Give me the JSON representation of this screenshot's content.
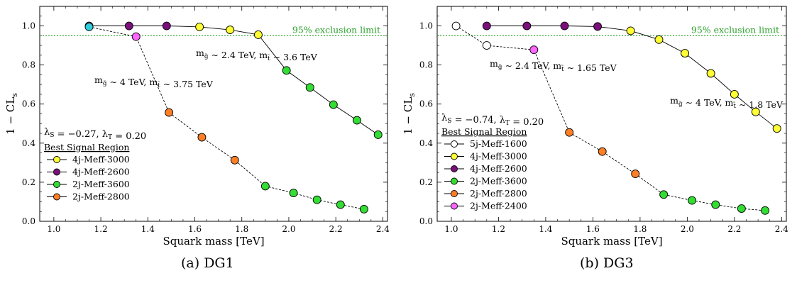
{
  "chart_data": [
    {
      "type": "scatter",
      "caption": "(a) DG1",
      "xlabel": "Squark mass [TeV]",
      "ylabel": "1 − CL",
      "ylabel_sub": "s",
      "xlim": [
        0.94,
        2.42
      ],
      "ylim": [
        0.0,
        1.1
      ],
      "xticks": [
        "1.0",
        "1.2",
        "1.4",
        "1.6",
        "1.8",
        "2.0",
        "2.2",
        "2.4"
      ],
      "xtick_values": [
        1.0,
        1.2,
        1.4,
        1.6,
        1.8,
        2.0,
        2.2,
        2.4
      ],
      "yticks": [
        "0.0",
        "0.2",
        "0.4",
        "0.6",
        "0.8",
        "1.0"
      ],
      "ytick_values": [
        0.0,
        0.2,
        0.4,
        0.6,
        0.8,
        1.0
      ],
      "exclusion": {
        "value": 0.95,
        "label": "95% exclusion limit",
        "color": "#2ca02c"
      },
      "params_text": "λ_S = −0.27, λ_T = 0.20",
      "legend_title": "Best Signal Region",
      "legend_placement": "lower-left",
      "legend": [
        {
          "label": "4j-Meff-3000",
          "color": "#ffff33"
        },
        {
          "label": "4j-Meff-2600",
          "color": "#7b0f7b"
        },
        {
          "label": "2j-Meff-3600",
          "color": "#33dd33"
        },
        {
          "label": "2j-Meff-2800",
          "color": "#ff7f27"
        }
      ],
      "series": [
        {
          "label": "m_g̃ ∼ 2.4 TeV, m_t̃ ∼ 3.6 TeV",
          "line_style": "solid",
          "points": [
            {
              "x": 1.15,
              "y": 1.0,
              "color": "#7b0f7b"
            },
            {
              "x": 1.32,
              "y": 1.0,
              "color": "#7b0f7b"
            },
            {
              "x": 1.48,
              "y": 1.0,
              "color": "#7b0f7b"
            },
            {
              "x": 1.62,
              "y": 0.995,
              "color": "#ffff33"
            },
            {
              "x": 1.75,
              "y": 0.98,
              "color": "#ffff33"
            },
            {
              "x": 1.87,
              "y": 0.955,
              "color": "#ffff33"
            },
            {
              "x": 1.99,
              "y": 0.772,
              "color": "#33dd33"
            },
            {
              "x": 2.09,
              "y": 0.685,
              "color": "#33dd33"
            },
            {
              "x": 2.19,
              "y": 0.597,
              "color": "#33dd33"
            },
            {
              "x": 2.29,
              "y": 0.517,
              "color": "#33dd33"
            },
            {
              "x": 2.38,
              "y": 0.443,
              "color": "#33dd33"
            }
          ]
        },
        {
          "label": "m_g̃ ∼ 4 TeV, m_t̃ ∼ 3.75 TeV",
          "line_style": "dashed",
          "points": [
            {
              "x": 1.15,
              "y": 0.995,
              "color": "#33ccdd"
            },
            {
              "x": 1.35,
              "y": 0.945,
              "color": "#ff66ff"
            },
            {
              "x": 1.49,
              "y": 0.557,
              "color": "#ff7f27"
            },
            {
              "x": 1.63,
              "y": 0.43,
              "color": "#ff7f27"
            },
            {
              "x": 1.77,
              "y": 0.313,
              "color": "#ff7f27"
            },
            {
              "x": 1.9,
              "y": 0.18,
              "color": "#33dd33"
            },
            {
              "x": 2.02,
              "y": 0.145,
              "color": "#33dd33"
            },
            {
              "x": 2.12,
              "y": 0.11,
              "color": "#33dd33"
            },
            {
              "x": 2.22,
              "y": 0.085,
              "color": "#33dd33"
            },
            {
              "x": 2.32,
              "y": 0.062,
              "color": "#33dd33"
            }
          ]
        }
      ]
    },
    {
      "type": "scatter",
      "caption": "(b) DG3",
      "xlabel": "Squark mass [TeV]",
      "ylabel": "1 − CL",
      "ylabel_sub": "s",
      "xlim": [
        0.94,
        2.42
      ],
      "ylim": [
        0.0,
        1.1
      ],
      "xticks": [
        "1.0",
        "1.2",
        "1.4",
        "1.6",
        "1.8",
        "2.0",
        "2.2",
        "2.4"
      ],
      "xtick_values": [
        1.0,
        1.2,
        1.4,
        1.6,
        1.8,
        2.0,
        2.2,
        2.4
      ],
      "yticks": [
        "0.0",
        "0.2",
        "0.4",
        "0.6",
        "0.8",
        "1.0"
      ],
      "ytick_values": [
        0.0,
        0.2,
        0.4,
        0.6,
        0.8,
        1.0
      ],
      "exclusion": {
        "value": 0.95,
        "label": "95% exclusion limit",
        "color": "#2ca02c"
      },
      "params_text": "λ_S = −0.74, λ_T = 0.20",
      "legend_title": "Best Signal Region",
      "legend_placement": "lower-left",
      "legend": [
        {
          "label": "5j-Meff-1600",
          "color": "#ffffff"
        },
        {
          "label": "4j-Meff-3000",
          "color": "#ffff33"
        },
        {
          "label": "4j-Meff-2600",
          "color": "#7b0f7b"
        },
        {
          "label": "2j-Meff-3600",
          "color": "#33dd33"
        },
        {
          "label": "2j-Meff-2800",
          "color": "#ff7f27"
        },
        {
          "label": "2j-Meff-2400",
          "color": "#ff66ff"
        }
      ],
      "series": [
        {
          "label": "m_g̃ ∼ 2.4 TeV, m_t̃ ∼ 1.65 TeV",
          "line_style": "solid",
          "points": [
            {
              "x": 1.15,
              "y": 1.0,
              "color": "#7b0f7b"
            },
            {
              "x": 1.32,
              "y": 1.0,
              "color": "#7b0f7b"
            },
            {
              "x": 1.48,
              "y": 1.0,
              "color": "#7b0f7b"
            },
            {
              "x": 1.62,
              "y": 0.997,
              "color": "#7b0f7b"
            },
            {
              "x": 1.76,
              "y": 0.975,
              "color": "#ffff33"
            },
            {
              "x": 1.88,
              "y": 0.93,
              "color": "#ffff33"
            },
            {
              "x": 1.99,
              "y": 0.86,
              "color": "#ffff33"
            },
            {
              "x": 2.1,
              "y": 0.757,
              "color": "#ffff33"
            },
            {
              "x": 2.2,
              "y": 0.65,
              "color": "#ffff33"
            },
            {
              "x": 2.29,
              "y": 0.56,
              "color": "#ffff33"
            },
            {
              "x": 2.38,
              "y": 0.475,
              "color": "#ffff33"
            }
          ]
        },
        {
          "label": "m_g̃ ∼ 4 TeV, m_t̃ ∼ 1.8 TeV",
          "line_style": "dashed",
          "points": [
            {
              "x": 1.02,
              "y": 1.0,
              "color": "#ffffff"
            },
            {
              "x": 1.15,
              "y": 0.9,
              "color": "#ffffff"
            },
            {
              "x": 1.35,
              "y": 0.878,
              "color": "#ff66ff"
            },
            {
              "x": 1.5,
              "y": 0.455,
              "color": "#ff7f27"
            },
            {
              "x": 1.64,
              "y": 0.357,
              "color": "#ff7f27"
            },
            {
              "x": 1.78,
              "y": 0.243,
              "color": "#ff7f27"
            },
            {
              "x": 1.9,
              "y": 0.137,
              "color": "#33dd33"
            },
            {
              "x": 2.02,
              "y": 0.107,
              "color": "#33dd33"
            },
            {
              "x": 2.12,
              "y": 0.085,
              "color": "#33dd33"
            },
            {
              "x": 2.23,
              "y": 0.065,
              "color": "#33dd33"
            },
            {
              "x": 2.33,
              "y": 0.055,
              "color": "#33dd33"
            }
          ]
        }
      ]
    }
  ]
}
